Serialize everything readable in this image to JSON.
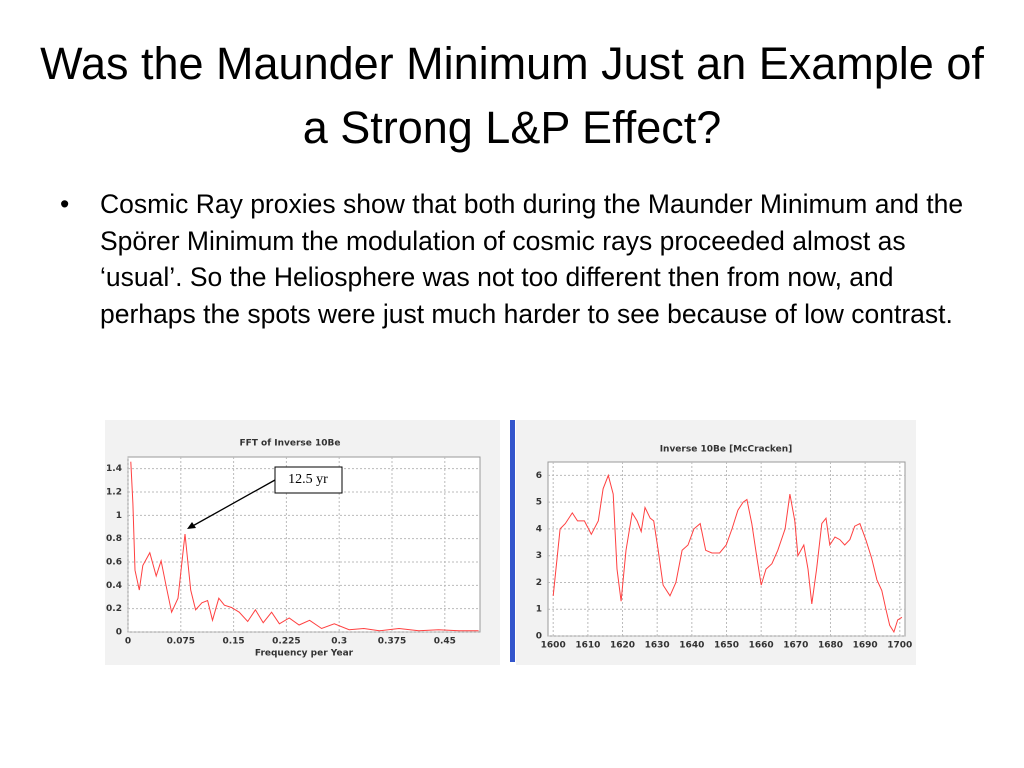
{
  "slide": {
    "title": "Was the Maunder Minimum Just an Example of a Strong L&P Effect?",
    "bullet": "Cosmic Ray proxies show that both during the Maunder Minimum and the Spörer Minimum the modulation of cosmic rays proceeded almost as ‘usual’. So the Heliosphere was not too different then from now, and perhaps the spots were just much harder to see because of low contrast."
  },
  "chart_data": [
    {
      "type": "line",
      "title": "FFT of Inverse 10Be",
      "x_label": "Frequency per Year",
      "color": "#ff4040",
      "grid": true,
      "x": [
        0.004,
        0.007,
        0.01,
        0.016,
        0.021,
        0.031,
        0.04,
        0.047,
        0.054,
        0.062,
        0.071,
        0.081,
        0.089,
        0.096,
        0.105,
        0.113,
        0.12,
        0.129,
        0.137,
        0.147,
        0.158,
        0.17,
        0.181,
        0.192,
        0.204,
        0.215,
        0.229,
        0.243,
        0.258,
        0.275,
        0.293,
        0.314,
        0.335,
        0.357,
        0.385,
        0.413,
        0.441,
        0.47,
        0.498
      ],
      "values": [
        1.46,
        1.1,
        0.53,
        0.36,
        0.57,
        0.68,
        0.48,
        0.61,
        0.4,
        0.17,
        0.29,
        0.84,
        0.36,
        0.19,
        0.25,
        0.27,
        0.1,
        0.29,
        0.23,
        0.21,
        0.17,
        0.09,
        0.19,
        0.08,
        0.17,
        0.07,
        0.12,
        0.06,
        0.1,
        0.03,
        0.07,
        0.02,
        0.03,
        0.01,
        0.03,
        0.01,
        0.02,
        0.01,
        0.01
      ],
      "xlim": [
        0,
        0.5
      ],
      "xticks": [
        0,
        0.075,
        0.15,
        0.225,
        0.3,
        0.375,
        0.45
      ],
      "ylim": [
        0,
        1.5
      ],
      "yticks": [
        0,
        0.2,
        0.4,
        0.6,
        0.8,
        1,
        1.2,
        1.4
      ],
      "annotation": {
        "text": "12.5 yr",
        "x": 0.081,
        "y": 0.84
      }
    },
    {
      "type": "line",
      "title": "Inverse 10Be [McCracken]",
      "color": "#ff4040",
      "grid": true,
      "x": [
        1600,
        1602,
        1603.5,
        1605.5,
        1607,
        1609,
        1611,
        1613,
        1614.4,
        1615.9,
        1617.3,
        1618.4,
        1619.6,
        1621,
        1622.8,
        1624.2,
        1625.4,
        1626.5,
        1628,
        1629,
        1630.3,
        1631.7,
        1633.7,
        1635.4,
        1637.2,
        1638.9,
        1640.6,
        1642.4,
        1644,
        1645.8,
        1648,
        1649.9,
        1651.6,
        1653.3,
        1654.8,
        1655.9,
        1657.3,
        1658.8,
        1660,
        1661.4,
        1663.1,
        1664.8,
        1666.9,
        1668.3,
        1669.7,
        1670.6,
        1672.3,
        1673.5,
        1674.6,
        1676,
        1677.5,
        1678.7,
        1679.8,
        1681.3,
        1682.7,
        1684.1,
        1685.6,
        1687,
        1688.5,
        1690.2,
        1691.9,
        1693.4,
        1694.8,
        1696,
        1697.1,
        1698.3,
        1699.4,
        1700.6
      ],
      "values": [
        1.5,
        4.0,
        4.2,
        4.6,
        4.3,
        4.3,
        3.8,
        4.3,
        5.5,
        6.0,
        5.3,
        2.5,
        1.3,
        3.2,
        4.6,
        4.3,
        3.9,
        4.8,
        4.4,
        4.3,
        3.2,
        1.9,
        1.5,
        2.0,
        3.2,
        3.4,
        4.0,
        4.2,
        3.2,
        3.1,
        3.1,
        3.4,
        4.0,
        4.7,
        5.0,
        5.1,
        4.2,
        2.9,
        1.9,
        2.5,
        2.7,
        3.2,
        4.0,
        5.3,
        4.3,
        3.0,
        3.4,
        2.5,
        1.2,
        2.5,
        4.2,
        4.4,
        3.4,
        3.7,
        3.6,
        3.4,
        3.6,
        4.1,
        4.2,
        3.6,
        2.9,
        2.1,
        1.7,
        1.0,
        0.4,
        0.15,
        0.6,
        0.7
      ],
      "xlim": [
        1598.5,
        1701.5
      ],
      "xticks": [
        1600,
        1610,
        1620,
        1630,
        1640,
        1650,
        1660,
        1670,
        1680,
        1690,
        1700
      ],
      "ylim": [
        0,
        6.5
      ],
      "yticks": [
        0,
        1,
        2,
        3,
        4,
        5,
        6
      ]
    }
  ]
}
